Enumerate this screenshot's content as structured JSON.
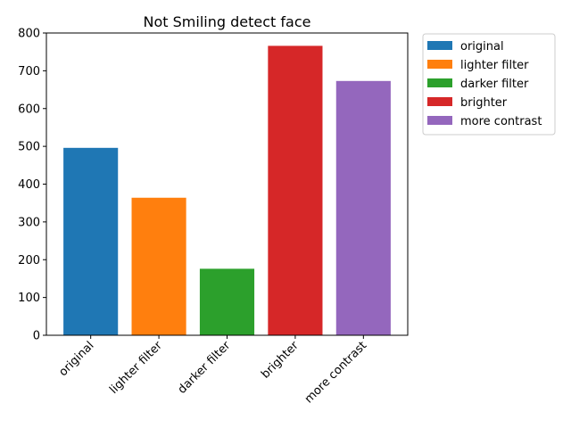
{
  "chart_data": {
    "type": "bar",
    "title": "Not Smiling detect face",
    "xlabel": "",
    "ylabel": "",
    "categories": [
      "original",
      "lighter filter",
      "darker filter",
      "brighter",
      "more contrast"
    ],
    "values": [
      496,
      364,
      176,
      766,
      673
    ],
    "colors": [
      "#1f77b4",
      "#ff7f0e",
      "#2ca02c",
      "#d62728",
      "#9467bd"
    ],
    "ylim": [
      0,
      800
    ],
    "yticks": [
      0,
      100,
      200,
      300,
      400,
      500,
      600,
      700,
      800
    ],
    "grid": false,
    "legend": {
      "placement": "outside-top-right",
      "entries": [
        "original",
        "lighter filter",
        "darker filter",
        "brighter",
        "more contrast"
      ]
    }
  }
}
